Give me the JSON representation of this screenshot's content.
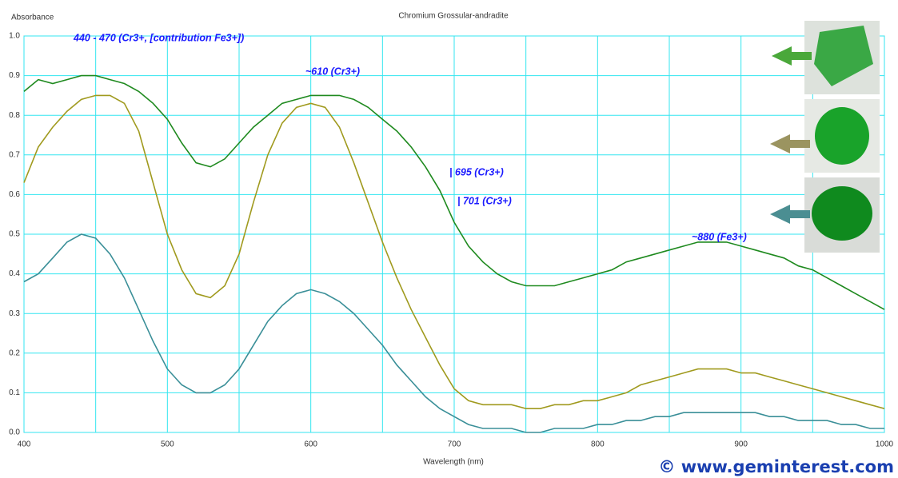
{
  "chart_data": {
    "type": "line",
    "title": "Chromium Grossular-andradite",
    "y_label": "Absorbance",
    "x_label": "Wavelength (nm)",
    "watermark": "© www.geminterest.com",
    "annotations": [
      "440 - 470 (Cr3+, [contribution Fe3+])",
      "~610 (Cr3+)",
      "| 695 (Cr3+)",
      "| 701 (Cr3+)",
      "~880 (Fe3+)"
    ],
    "x": [
      400,
      410,
      420,
      430,
      440,
      450,
      460,
      470,
      480,
      490,
      500,
      510,
      520,
      530,
      540,
      550,
      560,
      570,
      580,
      590,
      600,
      610,
      620,
      630,
      640,
      650,
      660,
      670,
      680,
      690,
      700,
      710,
      720,
      730,
      740,
      750,
      760,
      770,
      780,
      790,
      800,
      810,
      820,
      830,
      840,
      850,
      860,
      870,
      880,
      890,
      900,
      910,
      920,
      930,
      940,
      950,
      960,
      970,
      980,
      990,
      1000
    ],
    "series": [
      {
        "color": "#1f8a1f",
        "values": [
          0.86,
          0.89,
          0.88,
          0.89,
          0.9,
          0.9,
          0.89,
          0.88,
          0.86,
          0.83,
          0.79,
          0.73,
          0.68,
          0.67,
          0.69,
          0.73,
          0.77,
          0.8,
          0.83,
          0.84,
          0.85,
          0.85,
          0.85,
          0.84,
          0.82,
          0.79,
          0.76,
          0.72,
          0.67,
          0.61,
          0.53,
          0.47,
          0.43,
          0.4,
          0.38,
          0.37,
          0.37,
          0.37,
          0.38,
          0.39,
          0.4,
          0.41,
          0.43,
          0.44,
          0.45,
          0.46,
          0.47,
          0.48,
          0.48,
          0.48,
          0.47,
          0.46,
          0.45,
          0.44,
          0.42,
          0.41,
          0.39,
          0.37,
          0.35,
          0.33,
          0.31
        ]
      },
      {
        "color": "#a09a1e",
        "values": [
          0.63,
          0.72,
          0.77,
          0.81,
          0.84,
          0.85,
          0.85,
          0.83,
          0.76,
          0.63,
          0.5,
          0.41,
          0.35,
          0.34,
          0.37,
          0.45,
          0.58,
          0.7,
          0.78,
          0.82,
          0.83,
          0.82,
          0.77,
          0.68,
          0.58,
          0.48,
          0.39,
          0.31,
          0.24,
          0.17,
          0.11,
          0.08,
          0.07,
          0.07,
          0.07,
          0.06,
          0.06,
          0.07,
          0.07,
          0.08,
          0.08,
          0.09,
          0.1,
          0.12,
          0.13,
          0.14,
          0.15,
          0.16,
          0.16,
          0.16,
          0.15,
          0.15,
          0.14,
          0.13,
          0.12,
          0.11,
          0.1,
          0.09,
          0.08,
          0.07,
          0.06
        ]
      },
      {
        "color": "#3a8f98",
        "values": [
          0.38,
          0.4,
          0.44,
          0.48,
          0.5,
          0.49,
          0.45,
          0.39,
          0.31,
          0.23,
          0.16,
          0.12,
          0.1,
          0.1,
          0.12,
          0.16,
          0.22,
          0.28,
          0.32,
          0.35,
          0.36,
          0.35,
          0.33,
          0.3,
          0.26,
          0.22,
          0.17,
          0.13,
          0.09,
          0.06,
          0.04,
          0.02,
          0.01,
          0.01,
          0.01,
          0.0,
          0.0,
          0.01,
          0.01,
          0.01,
          0.02,
          0.02,
          0.03,
          0.03,
          0.04,
          0.04,
          0.05,
          0.05,
          0.05,
          0.05,
          0.05,
          0.05,
          0.04,
          0.04,
          0.03,
          0.03,
          0.03,
          0.02,
          0.02,
          0.01,
          0.01
        ]
      }
    ],
    "xlim": [
      400,
      1000
    ],
    "ylim": [
      0,
      1
    ],
    "xticks": [
      400,
      500,
      600,
      700,
      800,
      900,
      1000
    ],
    "x_minor_grid": [
      450,
      550,
      650,
      750,
      850,
      950
    ],
    "yticks": [
      {
        "value": 0,
        "label": "0.0"
      },
      0.1,
      0.2,
      0.3,
      0.4,
      0.5,
      0.6,
      0.7,
      0.8,
      0.9,
      {
        "value": 1,
        "label": "1.0"
      }
    ],
    "grid": true,
    "grid_color": "#33e6f0"
  }
}
